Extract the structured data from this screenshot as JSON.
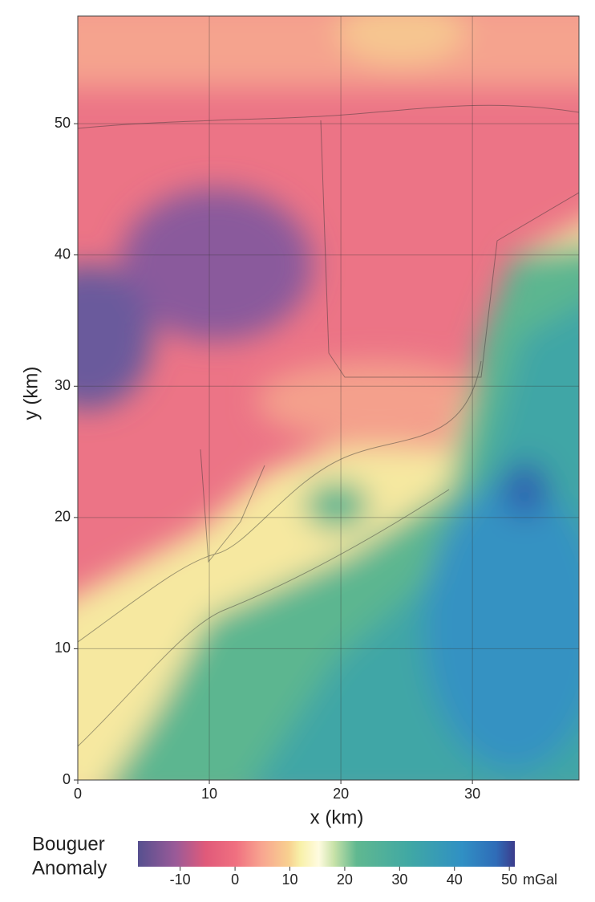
{
  "chart_data": {
    "type": "contour",
    "xlabel": "x (km)",
    "ylabel": "y (km)",
    "xlim": [
      0,
      38.1
    ],
    "ylim": [
      0,
      58.2
    ],
    "xticks": [
      0,
      10,
      20,
      30
    ],
    "yticks": [
      0,
      10,
      20,
      30,
      40,
      50
    ],
    "grid": true,
    "colorbar": {
      "label": [
        "Bouguer",
        "Anomaly"
      ],
      "unit": "mGal",
      "lim": [
        -17.7,
        51
      ],
      "ticks": [
        -10,
        0,
        10,
        20,
        30,
        40,
        50
      ]
    }
  }
}
